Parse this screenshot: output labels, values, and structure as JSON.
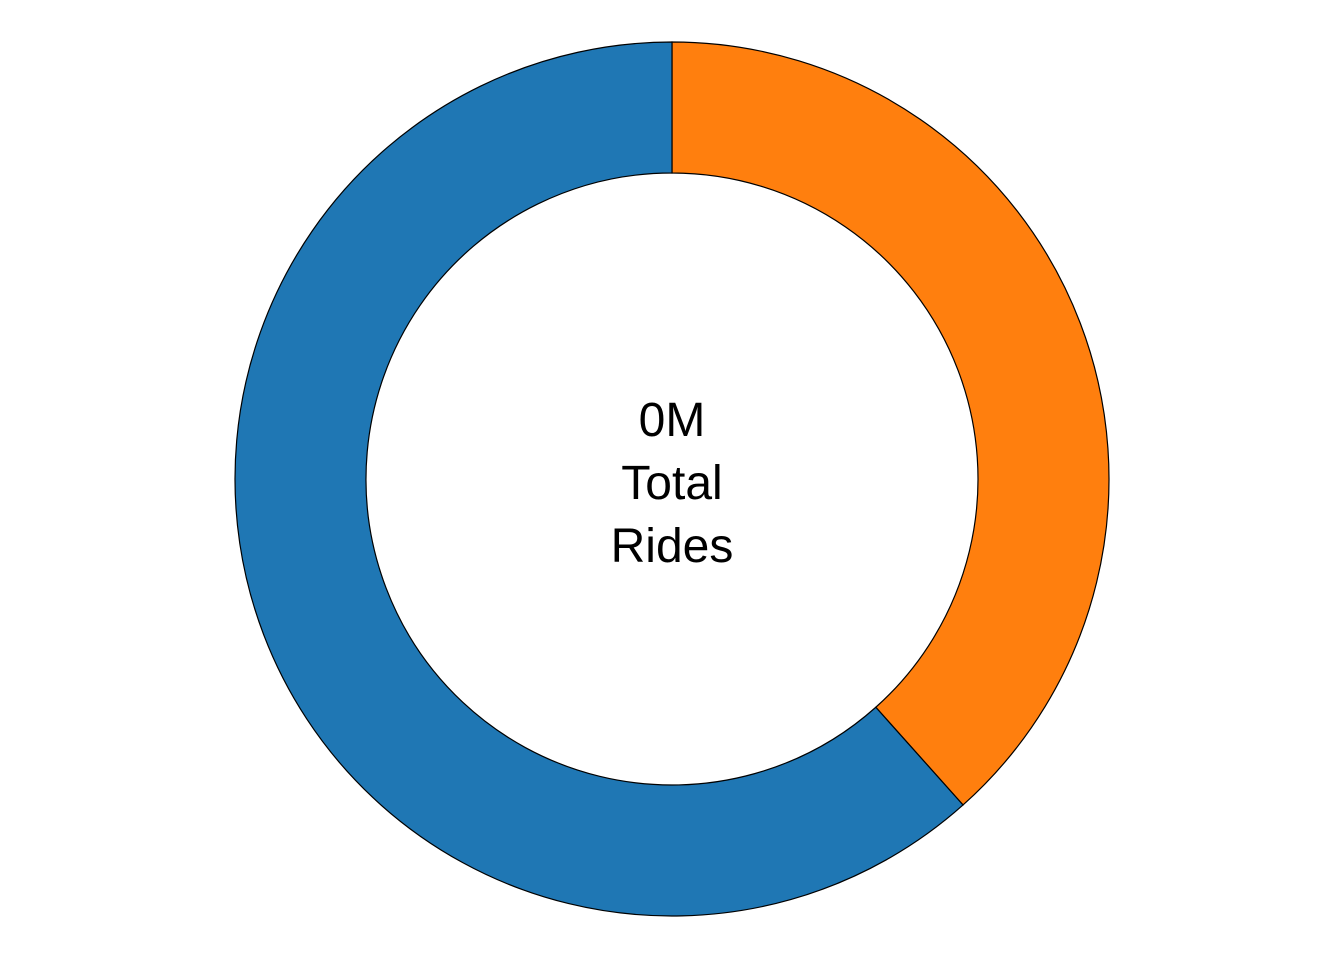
{
  "chart_data": {
    "type": "pie",
    "subtype": "donut",
    "title": "",
    "center_label": [
      "0M",
      "Total",
      "Rides"
    ],
    "categories": [
      "",
      ""
    ],
    "values": [
      0.384,
      0.616
    ],
    "colors": [
      "#ff7f0e",
      "#1f77b4"
    ],
    "start_direction": "top",
    "slice_direction": "clockwise",
    "legend": "none",
    "grid": false
  }
}
